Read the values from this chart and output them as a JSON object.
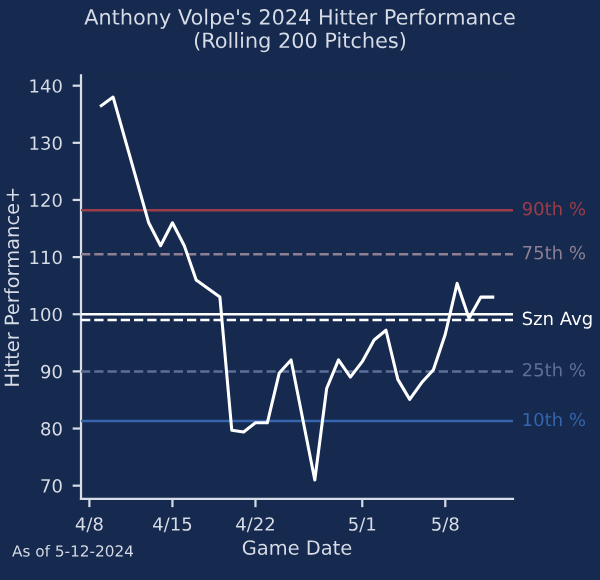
{
  "chart_data": {
    "type": "line",
    "title": "Anthony Volpe's 2024 Hitter Performance\n(Rolling 200 Pitches)",
    "xlabel": "Game Date",
    "ylabel": "Hitter Performance+",
    "x": [
      "2024-04-09",
      "2024-04-10",
      "2024-04-13",
      "2024-04-14",
      "2024-04-15",
      "2024-04-16",
      "2024-04-17",
      "2024-04-19",
      "2024-04-20",
      "2024-04-21",
      "2024-04-22",
      "2024-04-23",
      "2024-04-24",
      "2024-04-25",
      "2024-04-27",
      "2024-04-28",
      "2024-04-29",
      "2024-04-30",
      "2024-05-01",
      "2024-05-02",
      "2024-05-03",
      "2024-05-04",
      "2024-05-05",
      "2024-05-06",
      "2024-05-07",
      "2024-05-08",
      "2024-05-09",
      "2024-05-10",
      "2024-05-11",
      "2024-05-12"
    ],
    "series": [
      {
        "color": "#ffffff",
        "values": [
          136.5,
          138,
          116,
          112,
          116,
          112,
          106,
          103,
          79.7,
          79.4,
          81,
          81,
          89.7,
          92,
          71,
          87,
          92,
          89,
          91.7,
          95.5,
          97.2,
          88.6,
          85.1,
          88,
          90.3,
          96.5,
          105.4,
          99.3,
          103,
          103
        ]
      }
    ],
    "xlim": [
      "2024-04-07T07:00",
      "2024-05-13T17:00"
    ],
    "ylim": [
      67.7,
      141.8
    ],
    "xticks": [
      {
        "value": "2024-04-08",
        "label": "4/8"
      },
      {
        "value": "2024-04-15",
        "label": "4/15"
      },
      {
        "value": "2024-04-22",
        "label": "4/22"
      },
      {
        "value": "2024-05-01",
        "label": "5/1"
      },
      {
        "value": "2024-05-08",
        "label": "5/8"
      }
    ],
    "yticks": [
      70,
      80,
      90,
      100,
      110,
      120,
      130,
      140
    ],
    "ref_lines": [
      {
        "axis": "y",
        "value": 118.2,
        "label": "90th %",
        "color": "#9b3c48",
        "line_style": "solid"
      },
      {
        "axis": "y",
        "value": 110.5,
        "label": "75th %",
        "color": "#8e7f93",
        "line_style": "dashed"
      },
      {
        "axis": "y",
        "value": 100,
        "color": "#ffffff",
        "line_style": "solid"
      },
      {
        "axis": "y",
        "value": 99,
        "label": "Szn Avg",
        "color": "#ffffff",
        "line_style": "dashed"
      },
      {
        "axis": "y",
        "value": 90,
        "label": "25th %",
        "color": "#5d6f98",
        "line_style": "dashed"
      },
      {
        "axis": "y",
        "value": 81.3,
        "label": "10th %",
        "color": "#3565ad",
        "line_style": "solid"
      }
    ],
    "annotations": [
      "As of 5-12-2024"
    ],
    "grid": false,
    "legend": false,
    "marker": "none",
    "line_style": "solid"
  }
}
